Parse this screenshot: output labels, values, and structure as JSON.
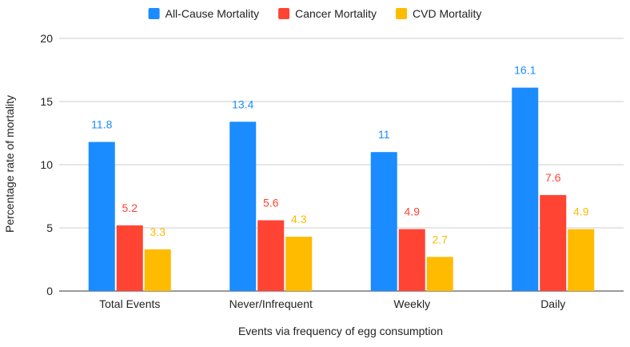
{
  "chart_data": {
    "type": "bar",
    "title": "",
    "categories": [
      "Total Events",
      "Never/Infrequent",
      "Weekly",
      "Daily"
    ],
    "series": [
      {
        "name": "All-Cause Mortality",
        "color": "#1a8cff",
        "values": [
          11.8,
          13.4,
          11,
          16.1
        ],
        "labels": [
          "11.8",
          "13.4",
          "11",
          "16.1"
        ]
      },
      {
        "name": "Cancer Mortality",
        "color": "#ff4433",
        "values": [
          5.2,
          5.6,
          4.9,
          7.6
        ],
        "labels": [
          "5.2",
          "5.6",
          "4.9",
          "7.6"
        ]
      },
      {
        "name": "CVD Mortality",
        "color": "#ffbb00",
        "values": [
          3.3,
          4.3,
          2.7,
          4.9
        ],
        "labels": [
          "3.3",
          "4.3",
          "2.7",
          "4.9"
        ]
      }
    ],
    "xlabel": "Events via frequency of egg consumption",
    "ylabel": "Percentage rate of mortality",
    "ylim": [
      0,
      20
    ],
    "yticks": [
      0,
      5,
      10,
      15,
      20
    ],
    "ytick_labels": [
      "0",
      "5",
      "10",
      "15",
      "20"
    ],
    "grid": true,
    "legend_position": "top-center"
  }
}
